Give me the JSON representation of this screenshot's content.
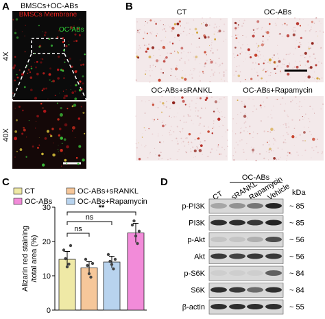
{
  "panels": {
    "a": {
      "label": "A",
      "title": "BMSCs+OC-ABs",
      "legend": [
        "BMSCs Membrane",
        "OC-ABs"
      ],
      "magnifications": [
        "4X",
        "40X"
      ]
    },
    "b": {
      "label": "B",
      "images": [
        "CT",
        "OC-ABs",
        "OC-ABs+sRANKL",
        "OC-ABs+Rapamycin"
      ]
    },
    "c": {
      "label": "C"
    },
    "d": {
      "label": "D",
      "group": "OC-ABs",
      "lanes": [
        "CT",
        "sRANKL",
        "Rapamycin",
        "Vehicle"
      ],
      "unit": "kDa",
      "rows": [
        {
          "protein": "p-PI3K",
          "size": "~ 85"
        },
        {
          "protein": "PI3K",
          "size": "~ 85"
        },
        {
          "protein": "p-Akt",
          "size": "~ 56"
        },
        {
          "protein": "Akt",
          "size": "~ 56"
        },
        {
          "protein": "p-S6K",
          "size": "~ 84"
        },
        {
          "protein": "S6K",
          "size": "~ 84"
        },
        {
          "protein": "β-actin",
          "size": "~ 55"
        }
      ]
    }
  },
  "chart_data": {
    "type": "bar",
    "ylabel": [
      "Alizarin red staining",
      "/total area (%)"
    ],
    "series": [
      {
        "name": "CT",
        "color": "#efe9a6",
        "values": [
          14.8
        ],
        "errors": [
          2.3
        ],
        "points": [
          17.5,
          15.0,
          12.6,
          13.4,
          18.8
        ]
      },
      {
        "name": "OC-ABs+sRANKL",
        "color": "#f6c79a",
        "values": [
          12.3
        ],
        "errors": [
          1.8
        ],
        "points": [
          14.8,
          13.0,
          10.6,
          9.6,
          13.6
        ]
      },
      {
        "name": "OC-ABs+Rapamycin",
        "color": "#b8d3ee",
        "values": [
          14.0
        ],
        "errors": [
          1.7
        ],
        "points": [
          16.2,
          14.2,
          13.3,
          12.0,
          14.8
        ]
      },
      {
        "name": "OC-ABs",
        "color": "#f28bd9",
        "values": [
          22.5
        ],
        "errors": [
          2.8
        ],
        "points": [
          24.8,
          26.0,
          21.6,
          19.4,
          23.0
        ]
      }
    ],
    "significance": [
      "**",
      "ns",
      "ns"
    ],
    "ylim": [
      0,
      30
    ],
    "yticks": [
      0,
      10,
      20,
      30
    ]
  }
}
